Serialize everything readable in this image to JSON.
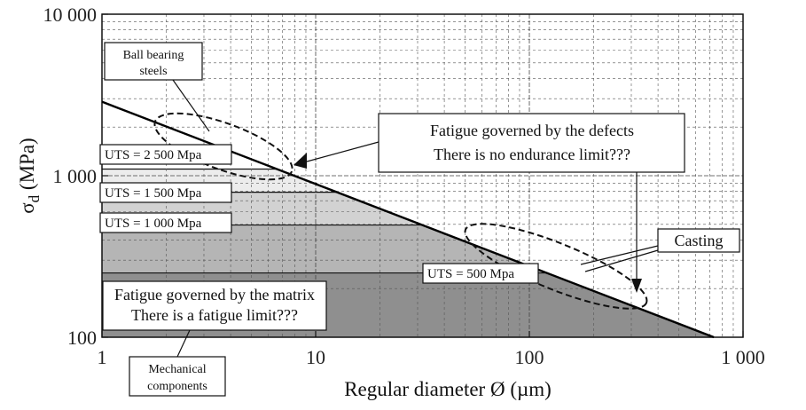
{
  "chart_data": {
    "type": "line",
    "x_scale": "log",
    "y_scale": "log",
    "xlim": [
      1,
      1000
    ],
    "ylim": [
      100,
      10000
    ],
    "grid": true,
    "xlabel": "Regular diameter  Ø (µm)",
    "ylabel_main": "σ",
    "ylabel_sub": "d",
    "ylabel_unit": " (MPa)",
    "x_ticks": [
      {
        "value": 1,
        "label": "1"
      },
      {
        "value": 10,
        "label": "10"
      },
      {
        "value": 100,
        "label": "100"
      },
      {
        "value": 1000,
        "label": "1 000"
      }
    ],
    "y_ticks": [
      {
        "value": 100,
        "label": "100"
      },
      {
        "value": 1000,
        "label": "1 000"
      },
      {
        "value": 10000,
        "label": "10 000"
      }
    ],
    "series": [
      {
        "x": [
          1,
          730
        ],
        "y": [
          2870,
          100
        ]
      }
    ],
    "uts_levels": [
      {
        "label": "UTS = 2 500 Mpa",
        "y": 1100,
        "fill": "#ececec"
      },
      {
        "label": "UTS = 1 500 Mpa",
        "y": 790,
        "fill": "#d2d2d2"
      },
      {
        "label": "UTS = 1 000 Mpa",
        "y": 495,
        "fill": "#b5b5b5"
      },
      {
        "label": "UTS = 500 Mpa",
        "y": 250,
        "fill": "#8f8f8f"
      }
    ],
    "annotations": {
      "ball_bearing": [
        "Ball bearing",
        "steels"
      ],
      "defects": [
        "Fatigue governed by the defects",
        "There is no endurance limit???"
      ],
      "casting": "Casting",
      "matrix": [
        "Fatigue governed by the matrix",
        "There is a fatigue limit???"
      ],
      "mechanical": [
        "Mechanical",
        "components"
      ]
    }
  }
}
